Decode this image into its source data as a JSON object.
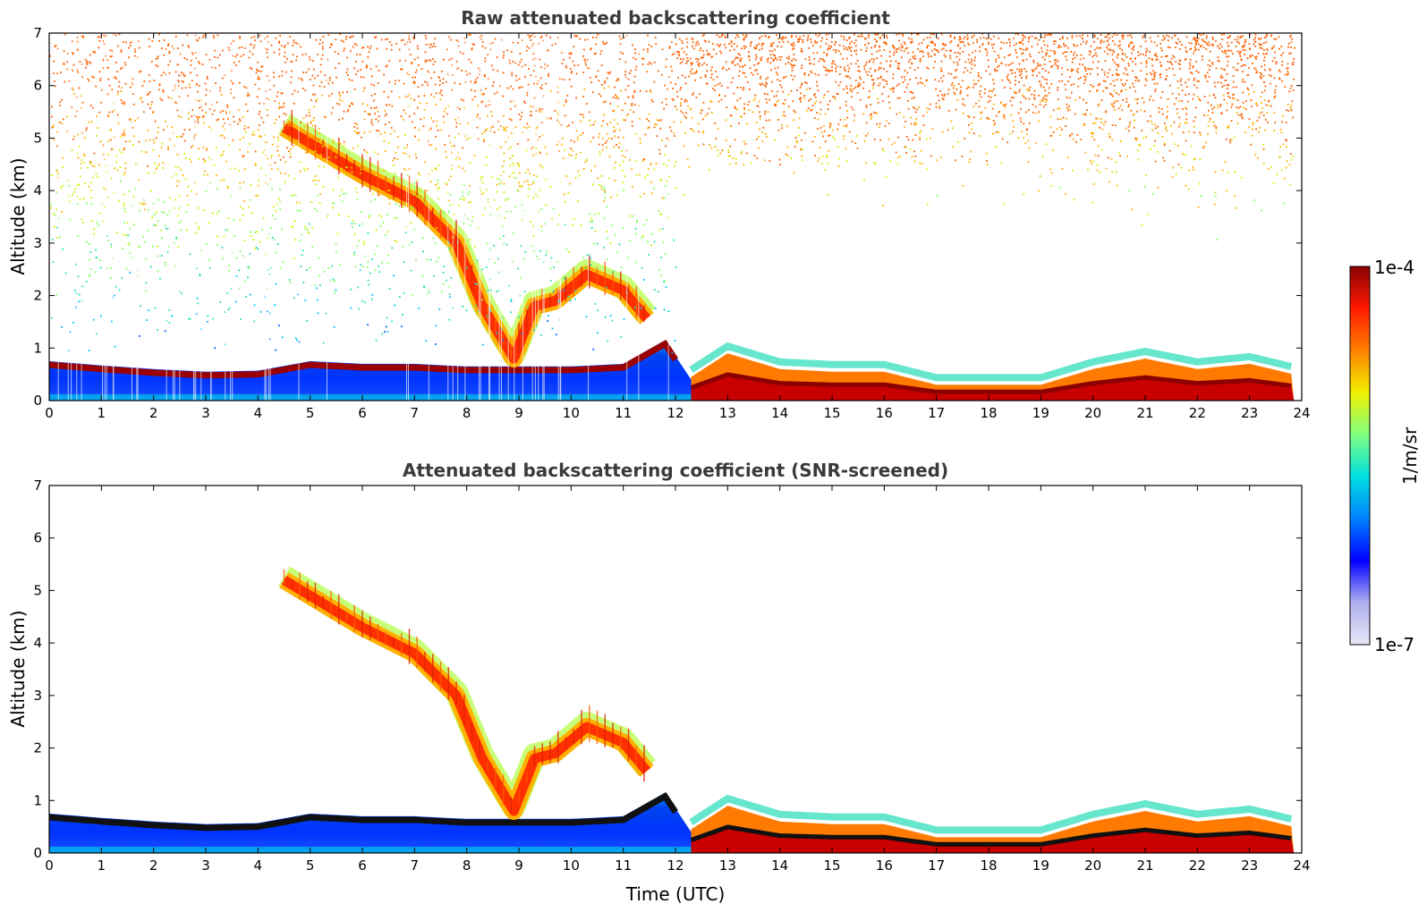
{
  "chart_data": [
    {
      "type": "heatmap",
      "title": "Raw attenuated backscattering coefficient",
      "xlabel": "",
      "ylabel": "Altitude (km)",
      "xlim": [
        0,
        24
      ],
      "ylim": [
        0,
        7
      ],
      "x_ticks": [
        0,
        1,
        2,
        3,
        4,
        5,
        6,
        7,
        8,
        9,
        10,
        11,
        12,
        13,
        14,
        15,
        16,
        17,
        18,
        19,
        20,
        21,
        22,
        23,
        24
      ],
      "y_ticks": [
        0,
        1,
        2,
        3,
        4,
        5,
        6,
        7
      ],
      "data_end_time": 23.85,
      "features": {
        "boundary_layer_top_km": {
          "time": [
            0,
            1,
            2,
            3,
            4,
            5,
            6,
            7,
            8,
            9,
            10,
            11,
            11.8,
            12.3,
            13,
            14,
            15,
            16,
            17,
            18,
            19,
            20,
            21,
            22,
            23,
            23.85
          ],
          "altitude": [
            0.8,
            0.72,
            0.65,
            0.6,
            0.62,
            0.8,
            0.75,
            0.75,
            0.7,
            0.7,
            0.7,
            0.75,
            1.2,
            0.45,
            0.9,
            0.6,
            0.55,
            0.55,
            0.3,
            0.3,
            0.3,
            0.6,
            0.8,
            0.6,
            0.7,
            0.5
          ]
        },
        "cloud_layer_km": {
          "time": [
            4.5,
            5,
            6,
            7,
            7.8,
            8.3,
            8.9,
            9.3,
            9.7,
            10.3,
            11,
            11.5
          ],
          "altitude": [
            5.2,
            4.9,
            4.3,
            3.8,
            3.0,
            1.8,
            0.8,
            1.8,
            1.9,
            2.4,
            2.1,
            1.5
          ]
        }
      }
    },
    {
      "type": "heatmap",
      "title": "Attenuated backscattering coefficient (SNR-screened)",
      "xlabel": "Time (UTC)",
      "ylabel": "Altitude (km)",
      "xlim": [
        0,
        24
      ],
      "ylim": [
        0,
        7
      ],
      "x_ticks": [
        0,
        1,
        2,
        3,
        4,
        5,
        6,
        7,
        8,
        9,
        10,
        11,
        12,
        13,
        14,
        15,
        16,
        17,
        18,
        19,
        20,
        21,
        22,
        23,
        24
      ],
      "y_ticks": [
        0,
        1,
        2,
        3,
        4,
        5,
        6,
        7
      ],
      "data_end_time": 23.85,
      "features": {
        "boundary_layer_top_km": {
          "time": [
            0,
            1,
            2,
            3,
            4,
            5,
            6,
            7,
            8,
            9,
            10,
            11,
            11.8,
            12.3,
            13,
            14,
            15,
            16,
            17,
            18,
            19,
            20,
            21,
            22,
            23,
            23.85
          ],
          "altitude": [
            0.8,
            0.72,
            0.65,
            0.6,
            0.62,
            0.8,
            0.75,
            0.75,
            0.7,
            0.7,
            0.7,
            0.75,
            1.2,
            0.45,
            0.9,
            0.6,
            0.55,
            0.55,
            0.3,
            0.3,
            0.3,
            0.6,
            0.8,
            0.6,
            0.7,
            0.5
          ]
        },
        "cloud_layer_km": {
          "time": [
            4.5,
            5,
            6,
            7,
            7.8,
            8.3,
            8.9,
            9.3,
            9.7,
            10.3,
            11,
            11.5
          ],
          "altitude": [
            5.2,
            4.9,
            4.3,
            3.8,
            3.0,
            1.8,
            0.8,
            1.8,
            1.9,
            2.4,
            2.1,
            1.5
          ]
        }
      }
    }
  ],
  "colorbar": {
    "label": "1/m/sr",
    "max_label": "1e-4",
    "min_label": "1e-7",
    "range": [
      1e-07,
      0.0001
    ],
    "scale": "log",
    "colormap": "jet",
    "stops": [
      "#e6e6f5",
      "#b0b0f0",
      "#0000ff",
      "#0080ff",
      "#00e0e0",
      "#80ff80",
      "#f0f000",
      "#ff8000",
      "#ff1a00",
      "#8b0000"
    ]
  }
}
